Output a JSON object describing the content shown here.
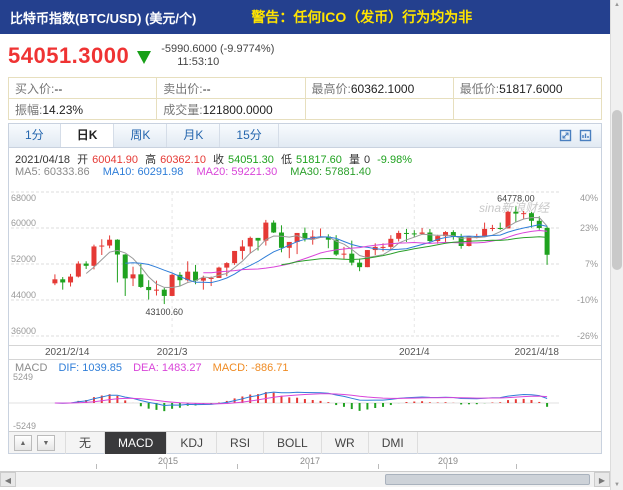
{
  "header": {
    "title": "比特币指数(BTC/USD) (美元/个)",
    "warning": "警告：任何ICO（发币）行为均为非"
  },
  "quote": {
    "price": "54051.3000",
    "change": "-5990.6000 (-9.9774%)",
    "time": "11:53:10",
    "fields": {
      "buy_label": "买入价:",
      "buy_value": "--",
      "sell_label": "卖出价:",
      "sell_value": "--",
      "high_label": "最高价:",
      "high_value": "60362.1000",
      "low_label": "最低价:",
      "low_value": "51817.6000",
      "amp_label": "振幅:",
      "amp_value": "14.23%",
      "vol_label": "成交量:",
      "vol_value": "121800.0000"
    }
  },
  "period_tabs": {
    "items": [
      "1分",
      "日K",
      "周K",
      "月K",
      "15分"
    ],
    "active": "日K"
  },
  "ohlc_line": {
    "date": "2021/04/18",
    "o_label": "开",
    "o": "60041.90",
    "h_label": "高",
    "h": "60362.10",
    "c_label": "收",
    "c": "54051.30",
    "l_label": "低",
    "l": "51817.60",
    "v_label": "量",
    "v": "0",
    "pct": "-9.98%"
  },
  "ma_line": {
    "ma5": "MA5: 60333.86",
    "ma10": "MA10: 60291.98",
    "ma20": "MA20: 59221.30",
    "ma30": "MA30: 57881.40"
  },
  "macd_head": {
    "name": "MACD",
    "dif": "DIF: 1039.85",
    "dea": "DEA: 1483.27",
    "macd": "MACD: -886.71",
    "ymax": "5249",
    "ymin": "-5249"
  },
  "indicator_tabs": {
    "up": "▲",
    "down": "▼",
    "items": [
      "无",
      "MACD",
      "KDJ",
      "RSI",
      "BOLL",
      "WR",
      "DMI"
    ],
    "active": "MACD"
  },
  "timeline": {
    "years": [
      "2015",
      "2017",
      "2019"
    ]
  },
  "scroll": {
    "left": "◀",
    "right": "▶",
    "up": "▲",
    "down": "▼"
  },
  "chart_data": {
    "type": "candlestick",
    "title": "比特币指数(BTC/USD) 日K",
    "watermark": "sina新浪财经",
    "ylim": [
      36000,
      68000
    ],
    "y_ticks": [
      68000,
      60000,
      52000,
      44000,
      36000
    ],
    "pct_ticks": [
      "40%",
      "23%",
      "7%",
      "-10%",
      "-26%"
    ],
    "x_labels": [
      {
        "label": "2021/2/14",
        "index": 0
      },
      {
        "label": "2021/3",
        "index": 15
      },
      {
        "label": "2021/4",
        "index": 46
      },
      {
        "label": "2021/4/18",
        "index": 63
      }
    ],
    "annotations": [
      {
        "text": "64778.00",
        "index": 59,
        "price": 64778,
        "position": "above"
      },
      {
        "text": "43100.60",
        "index": 14,
        "price": 43100.6,
        "position": "below"
      }
    ],
    "ma_periods": [
      5,
      10,
      20,
      30
    ],
    "macd_pane": {
      "ylim": [
        -5249,
        5249
      ],
      "dif": 1039.85,
      "dea": 1483.27,
      "macd": -886.71
    },
    "colors": {
      "up": "#e53935",
      "down": "#1fa21f",
      "ma5": "#9a9a9a",
      "ma10": "#2f7ed8",
      "ma20": "#d945d9",
      "ma30": "#2ba02b",
      "dif": "#2f7ed8",
      "dea": "#d945d9"
    },
    "candles": [
      [
        "2021-02-14",
        47700,
        49700,
        47300,
        48600
      ],
      [
        "2021-02-15",
        48600,
        49100,
        46300,
        47900
      ],
      [
        "2021-02-16",
        47900,
        49800,
        47000,
        49200
      ],
      [
        "2021-02-17",
        49200,
        52600,
        49000,
        52100
      ],
      [
        "2021-02-18",
        52100,
        52600,
        50900,
        51600
      ],
      [
        "2021-02-19",
        51600,
        56300,
        50800,
        55900
      ],
      [
        "2021-02-20",
        55900,
        57500,
        54000,
        56100
      ],
      [
        "2021-02-21",
        56100,
        58350,
        55500,
        57400
      ],
      [
        "2021-02-22",
        57400,
        57500,
        47900,
        54100
      ],
      [
        "2021-02-23",
        54100,
        54200,
        44900,
        48800
      ],
      [
        "2021-02-24",
        48800,
        51400,
        47100,
        49700
      ],
      [
        "2021-02-25",
        49700,
        52000,
        46700,
        46900
      ],
      [
        "2021-02-26",
        46900,
        48400,
        44100,
        46200
      ],
      [
        "2021-02-27",
        46200,
        48300,
        45000,
        46300
      ],
      [
        "2021-02-28",
        46300,
        46700,
        43100.6,
        44900
      ],
      [
        "2021-03-01",
        44900,
        49800,
        44900,
        49600
      ],
      [
        "2021-03-02",
        49600,
        50200,
        47100,
        48400
      ],
      [
        "2021-03-03",
        48400,
        52600,
        48100,
        50300
      ],
      [
        "2021-03-04",
        50300,
        51800,
        47500,
        48300
      ],
      [
        "2021-03-05",
        48300,
        49400,
        46300,
        48900
      ],
      [
        "2021-03-06",
        48900,
        49200,
        47100,
        48900
      ],
      [
        "2021-03-07",
        48900,
        51400,
        48900,
        51200
      ],
      [
        "2021-03-08",
        51200,
        52400,
        49300,
        52200
      ],
      [
        "2021-03-09",
        52200,
        54900,
        51800,
        54900
      ],
      [
        "2021-03-10",
        54900,
        57300,
        53000,
        55900
      ],
      [
        "2021-03-11",
        55900,
        58100,
        54300,
        57800
      ],
      [
        "2021-03-12",
        57800,
        57800,
        55000,
        57200
      ],
      [
        "2021-03-13",
        57200,
        61800,
        56100,
        61200
      ],
      [
        "2021-03-14",
        61200,
        61700,
        58900,
        59000
      ],
      [
        "2021-03-15",
        59000,
        60600,
        54600,
        55600
      ],
      [
        "2021-03-16",
        55600,
        56900,
        53300,
        56900
      ],
      [
        "2021-03-17",
        56900,
        58900,
        54200,
        58900
      ],
      [
        "2021-03-18",
        58900,
        60100,
        57000,
        57600
      ],
      [
        "2021-03-19",
        57600,
        59500,
        56300,
        58100
      ],
      [
        "2021-03-20",
        58100,
        59900,
        57900,
        58100
      ],
      [
        "2021-03-21",
        58100,
        58600,
        55500,
        57400
      ],
      [
        "2021-03-22",
        57400,
        58400,
        53800,
        54100
      ],
      [
        "2021-03-23",
        54100,
        55800,
        53100,
        54300
      ],
      [
        "2021-03-24",
        54300,
        57200,
        51700,
        52300
      ],
      [
        "2021-03-25",
        52300,
        53200,
        50400,
        51300
      ],
      [
        "2021-03-26",
        51300,
        55100,
        51300,
        55100
      ],
      [
        "2021-03-27",
        55100,
        56600,
        54000,
        55800
      ],
      [
        "2021-03-28",
        55800,
        56600,
        54800,
        55800
      ],
      [
        "2021-03-29",
        55800,
        58400,
        55000,
        57600
      ],
      [
        "2021-03-30",
        57600,
        59400,
        57000,
        58900
      ],
      [
        "2021-03-31",
        58900,
        59800,
        56900,
        58800
      ],
      [
        "2021-04-01",
        58800,
        59500,
        57900,
        58700
      ],
      [
        "2021-04-02",
        58700,
        60000,
        58500,
        59000
      ],
      [
        "2021-04-03",
        59000,
        59800,
        56900,
        57100
      ],
      [
        "2021-04-04",
        57100,
        58500,
        56500,
        58200
      ],
      [
        "2021-04-05",
        58200,
        59300,
        56900,
        59100
      ],
      [
        "2021-04-06",
        59100,
        59500,
        57400,
        58000
      ],
      [
        "2021-04-07",
        58000,
        58700,
        55400,
        56000
      ],
      [
        "2021-04-08",
        56000,
        58200,
        55900,
        58100
      ],
      [
        "2021-04-09",
        58100,
        58700,
        57700,
        58100
      ],
      [
        "2021-04-10",
        58100,
        61200,
        58000,
        59800
      ],
      [
        "2021-04-11",
        59800,
        60700,
        59300,
        60000
      ],
      [
        "2021-04-12",
        60000,
        61200,
        59600,
        59900
      ],
      [
        "2021-04-13",
        59900,
        63800,
        59900,
        63600
      ],
      [
        "2021-04-14",
        63600,
        64778,
        61300,
        63200
      ],
      [
        "2021-04-15",
        63200,
        63800,
        62000,
        63300
      ],
      [
        "2021-04-16",
        63300,
        63600,
        60100,
        61600
      ],
      [
        "2021-04-17",
        61600,
        62600,
        59600,
        60000
      ],
      [
        "2021-04-18",
        60041.9,
        60362.1,
        51817.6,
        54051.3
      ]
    ]
  }
}
